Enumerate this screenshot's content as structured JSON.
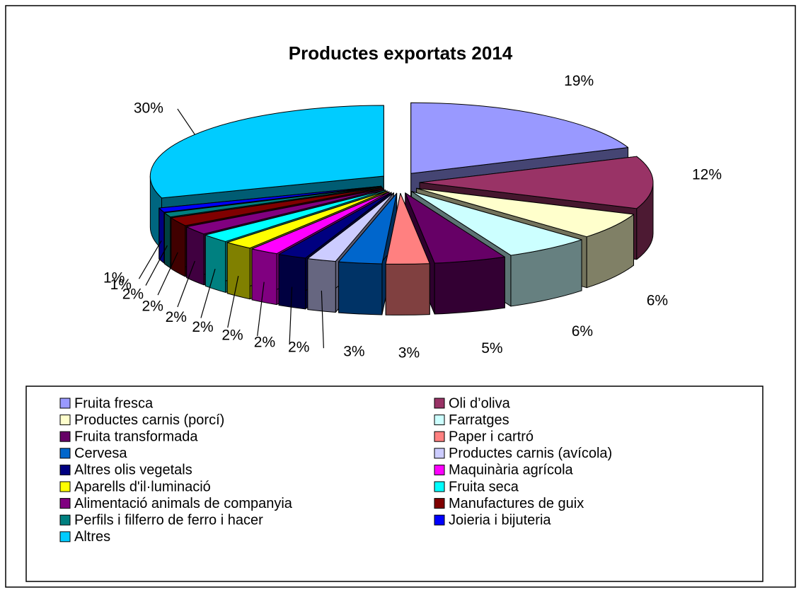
{
  "chart_data": {
    "type": "pie3d",
    "title": "Productes exportats 2014",
    "categories": [
      "Fruita fresca",
      "Oli d’oliva",
      "Productes carnis (porcí)",
      "Farratges",
      "Fruita transformada",
      "Paper i cartró",
      "Cervesa",
      "Productes carnis (avícola)",
      "Altres olis vegetals",
      "Maquinària agrícola",
      "Aparells d'il·luminació",
      "Fruita seca",
      "Alimentació animals de companyia",
      "Manufactures de guix",
      "Perfils i filferro de ferro i hacer",
      "Joieria i bijuteria",
      "Altres"
    ],
    "values": [
      19,
      12,
      6,
      6,
      5,
      3,
      3,
      2,
      2,
      2,
      2,
      2,
      2,
      2,
      1,
      1,
      30
    ],
    "value_labels": [
      "19%",
      "12%",
      "6%",
      "6%",
      "5%",
      "3%",
      "3%",
      "2%",
      "2%",
      "2%",
      "2%",
      "2%",
      "2%",
      "2%",
      "1%",
      "1%",
      "30%"
    ],
    "colors": [
      "#9999ff",
      "#993366",
      "#ffffcc",
      "#ccffff",
      "#660066",
      "#ff8080",
      "#0066cc",
      "#ccccff",
      "#000080",
      "#ff00ff",
      "#ffff00",
      "#00ffff",
      "#800080",
      "#800000",
      "#008080",
      "#0000ff",
      "#00ccff"
    ]
  }
}
